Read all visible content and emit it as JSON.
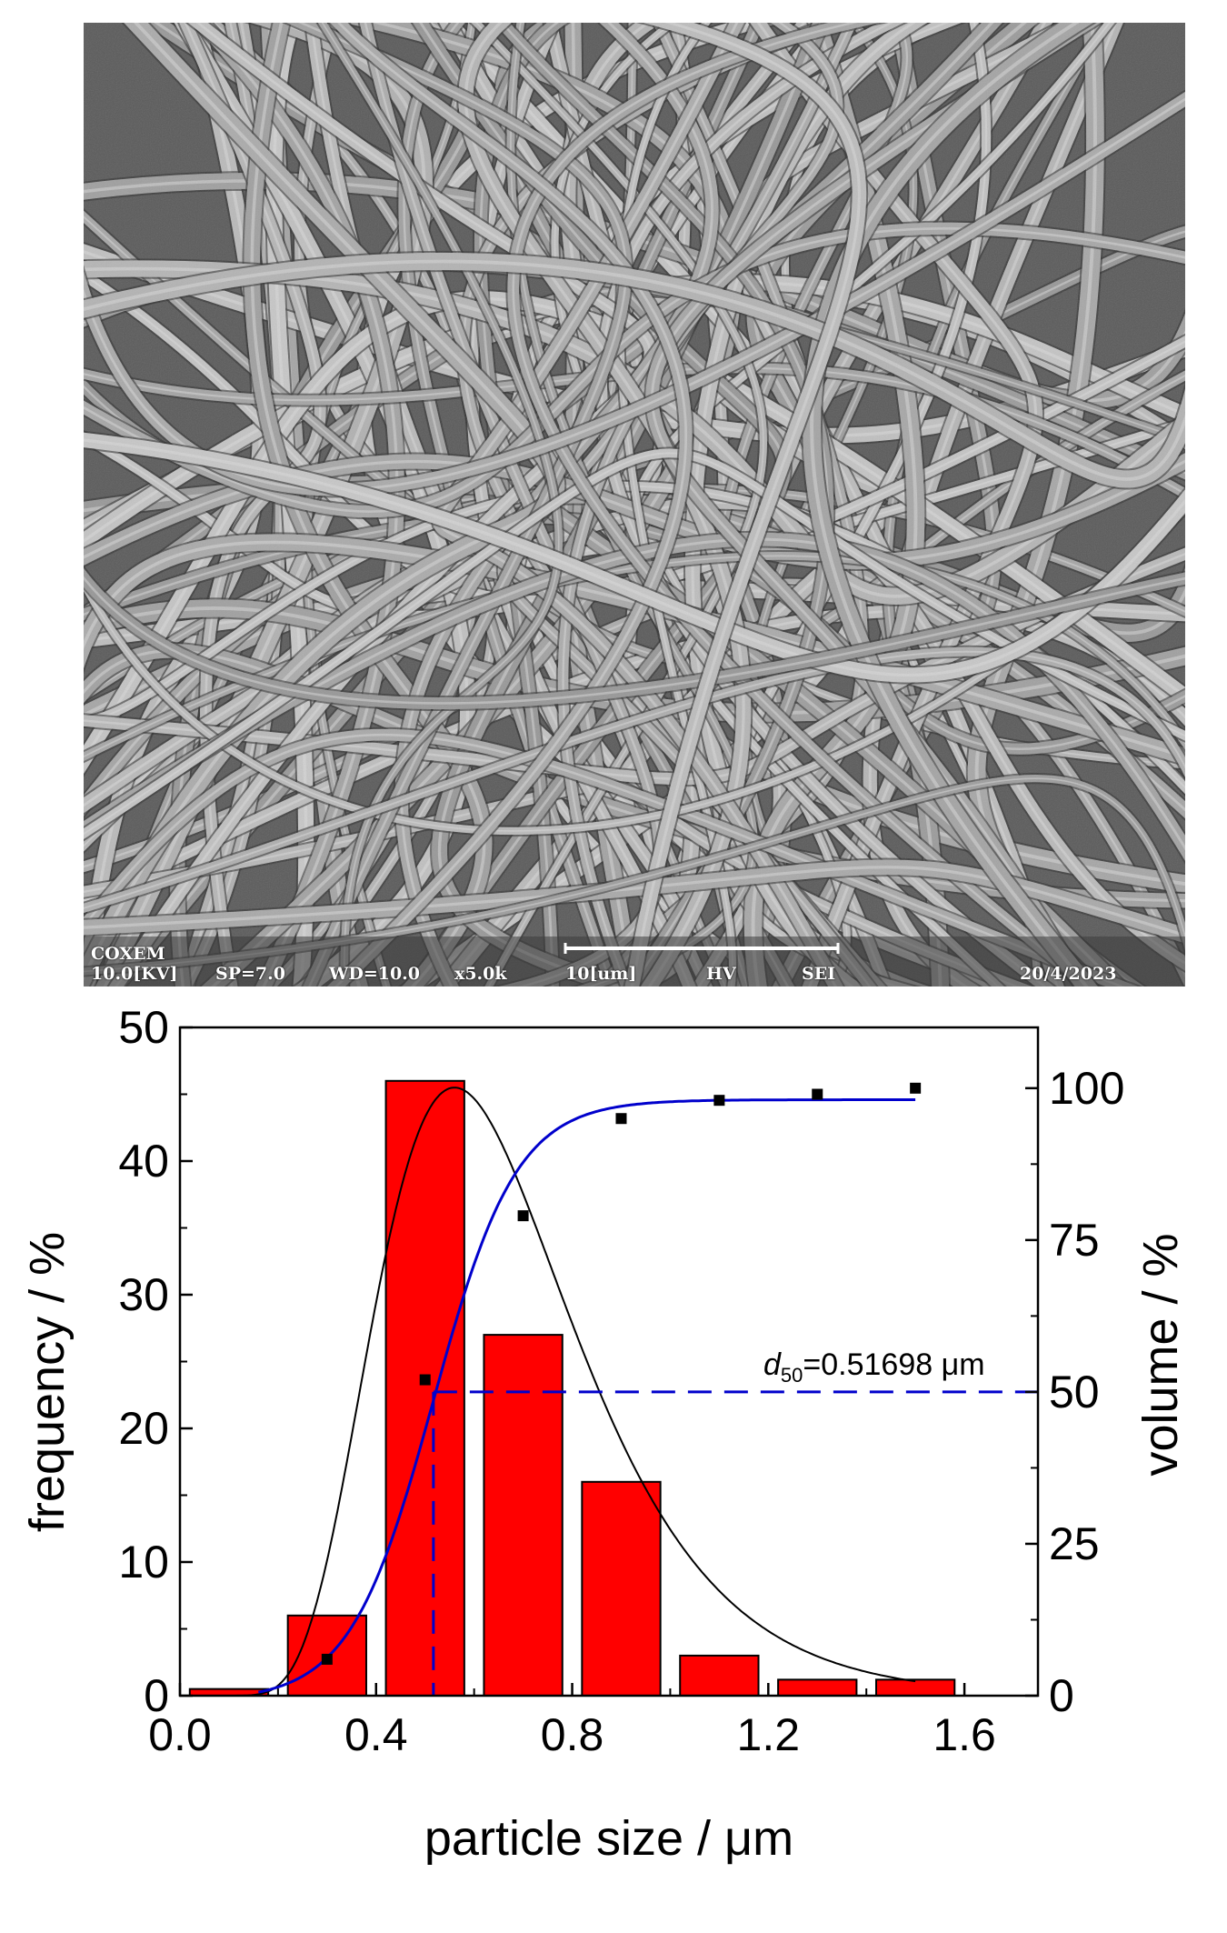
{
  "sem_image": {
    "description_icon": "sem-micrograph-fibers",
    "info_bar": {
      "brand": "COXEM",
      "voltage": "10.0[KV]",
      "spot": "SP=7.0",
      "working_distance": "WD=10.0",
      "magnification": "x5.0k",
      "scale_label": "10[um]",
      "vacuum": "HV",
      "detector": "SEI",
      "date": "20/4/2023"
    }
  },
  "colors": {
    "bars": "#ff0000",
    "cumulative_curve": "#0000cc",
    "frequency_fit": "#000000",
    "d50_line": "#0000cc"
  },
  "chart_data": {
    "type": "bar",
    "xlabel": "particle size / μm",
    "ylabel_left": "frequency / %",
    "ylabel_right": "volume / %",
    "xlim": [
      0.0,
      1.75
    ],
    "ylim_left": [
      0,
      50
    ],
    "ylim_right": [
      0,
      110
    ],
    "x_ticks": [
      "0.0",
      "0.4",
      "0.8",
      "1.2",
      "1.6"
    ],
    "y_left_ticks": [
      "0",
      "10",
      "20",
      "30",
      "40",
      "50"
    ],
    "y_right_ticks": [
      "0",
      "25",
      "50",
      "75",
      "100"
    ],
    "bars": [
      {
        "x": 0.1,
        "width": 0.16,
        "value": 0.5
      },
      {
        "x": 0.3,
        "width": 0.16,
        "value": 6
      },
      {
        "x": 0.5,
        "width": 0.16,
        "value": 46
      },
      {
        "x": 0.7,
        "width": 0.16,
        "value": 27
      },
      {
        "x": 0.9,
        "width": 0.16,
        "value": 16
      },
      {
        "x": 1.1,
        "width": 0.16,
        "value": 3
      },
      {
        "x": 1.3,
        "width": 0.16,
        "value": 1.2
      },
      {
        "x": 1.5,
        "width": 0.16,
        "value": 1.2
      }
    ],
    "cumulative_points": [
      {
        "x": 0.3,
        "y": 6
      },
      {
        "x": 0.5,
        "y": 52
      },
      {
        "x": 0.7,
        "y": 79
      },
      {
        "x": 0.9,
        "y": 95
      },
      {
        "x": 1.1,
        "y": 98
      },
      {
        "x": 1.3,
        "y": 99
      },
      {
        "x": 1.5,
        "y": 100
      }
    ],
    "d50": {
      "label_prefix": "d",
      "label_sub": "50",
      "label_value": "=0.51698 μm",
      "x": 0.51698,
      "y": 50
    }
  }
}
